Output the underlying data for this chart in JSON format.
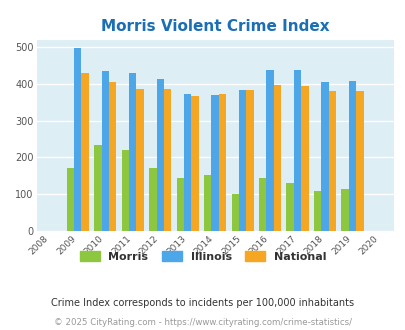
{
  "title": "Morris Violent Crime Index",
  "years": [
    2008,
    2009,
    2010,
    2011,
    2012,
    2013,
    2014,
    2015,
    2016,
    2017,
    2018,
    2019,
    2020
  ],
  "data_years": [
    2009,
    2010,
    2011,
    2012,
    2013,
    2014,
    2015,
    2016,
    2017,
    2018,
    2019
  ],
  "morris": [
    170,
    235,
    220,
    170,
    143,
    153,
    100,
    143,
    130,
    110,
    115
  ],
  "illinois": [
    498,
    435,
    428,
    414,
    372,
    370,
    384,
    438,
    438,
    405,
    408
  ],
  "national": [
    430,
    405,
    387,
    387,
    368,
    372,
    383,
    397,
    394,
    379,
    379
  ],
  "morris_color": "#8dc63f",
  "illinois_color": "#4da6e8",
  "national_color": "#f5a623",
  "bg_color": "#ddeef5",
  "title_color": "#1a6fb5",
  "ylim": [
    0,
    520
  ],
  "yticks": [
    0,
    100,
    200,
    300,
    400,
    500
  ],
  "footnote1": "Crime Index corresponds to incidents per 100,000 inhabitants",
  "footnote2": "© 2025 CityRating.com - https://www.cityrating.com/crime-statistics/",
  "legend_labels": [
    "Morris",
    "Illinois",
    "National"
  ],
  "bar_width": 0.27
}
